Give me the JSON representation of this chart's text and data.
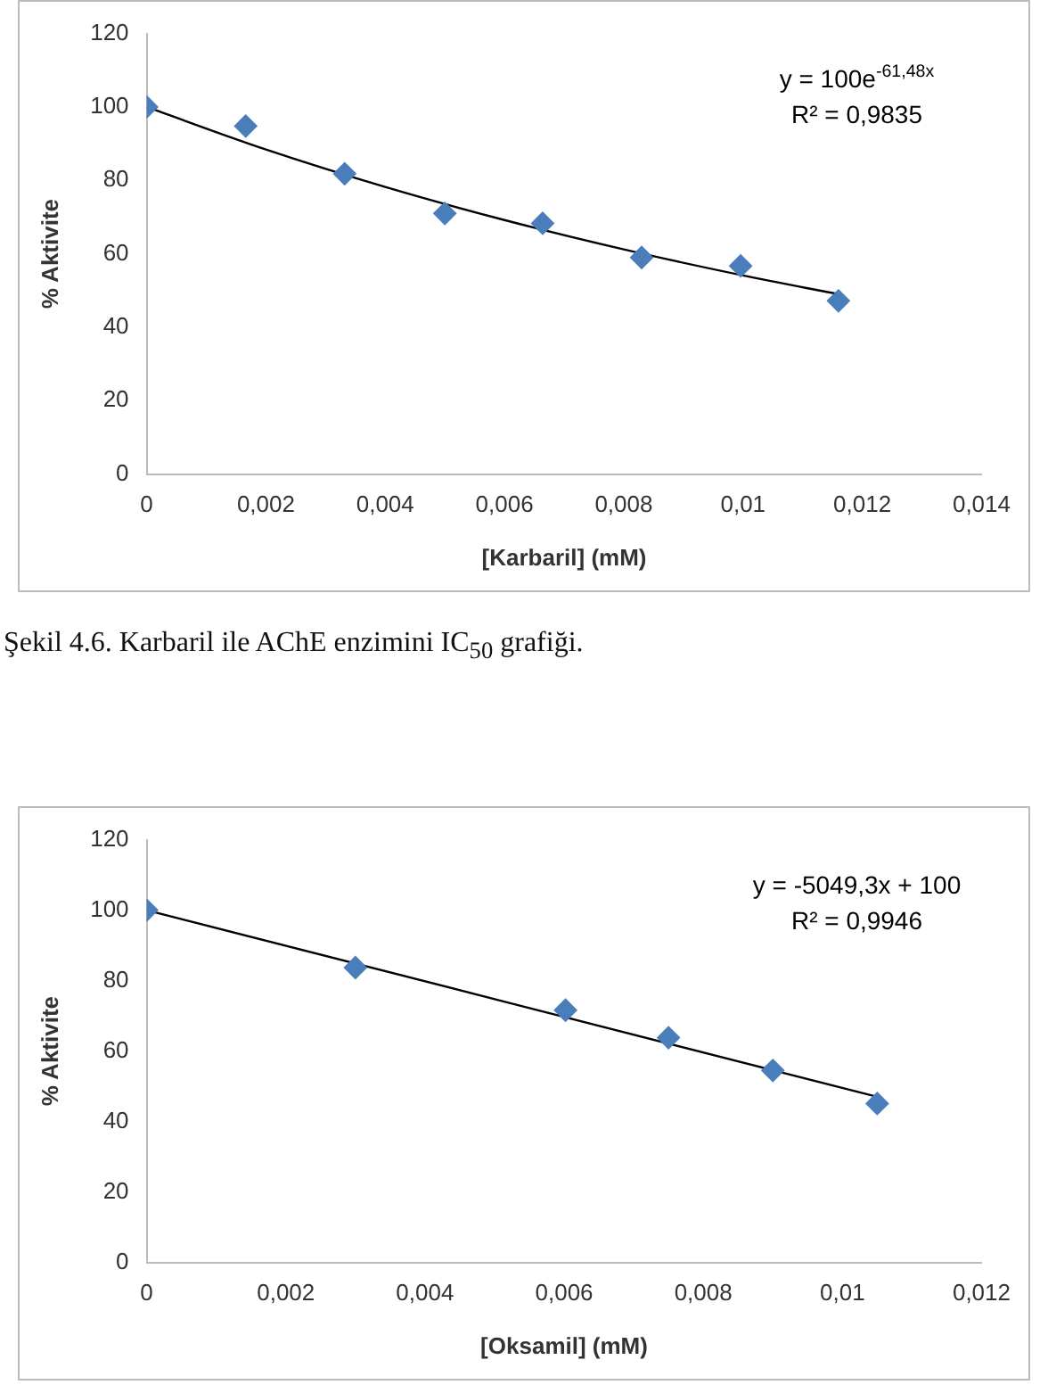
{
  "chart_data": [
    {
      "type": "scatter",
      "ylabel": "% Aktivite",
      "xlabel": "[Karbaril] (mM)",
      "marker": "diamond",
      "grid": false,
      "legend": false,
      "xlim": [
        0,
        0.014
      ],
      "xticks": [
        0,
        {
          "value": 0.002,
          "label": "0,002"
        },
        {
          "value": 0.004,
          "label": "0,004"
        },
        {
          "value": 0.006,
          "label": "0,006"
        },
        {
          "value": 0.008,
          "label": "0,008"
        },
        {
          "value": 0.01,
          "label": "0,01"
        },
        {
          "value": 0.012,
          "label": "0,012"
        },
        {
          "value": 0.014,
          "label": "0,014"
        }
      ],
      "ylim": [
        0,
        120
      ],
      "yticks": [
        0,
        20,
        40,
        60,
        80,
        100,
        120
      ],
      "series": [
        {
          "type": "scatter",
          "color": "#4a7ebb",
          "x": [
            0,
            0.00166,
            0.00332,
            0.005,
            0.00664,
            0.0083,
            0.00996,
            0.0116
          ],
          "values": [
            100,
            94.8,
            81.8,
            71,
            68.3,
            59,
            56.7,
            47.2
          ]
        },
        {
          "type": "line",
          "color": "#000000",
          "marker": "none",
          "x": [
            0,
            0.002,
            0.004,
            0.006,
            0.008,
            0.01,
            0.0116
          ],
          "values": [
            100,
            88.4,
            78.2,
            69.2,
            61.2,
            54.1,
            49
          ]
        }
      ],
      "annotations": [
        "y = 100e$^{-61,48x}$",
        "R² = 0,9835",
        "Şekil 4.6. Karbaril ile AChE enzimini IC$_{50}$ grafiği."
      ]
    },
    {
      "type": "scatter",
      "ylabel": "% Aktivite",
      "xlabel": "[Oksamil] (mM)",
      "marker": "diamond",
      "grid": false,
      "legend": false,
      "xlim": [
        0,
        0.012
      ],
      "xticks": [
        0,
        {
          "value": 0.002,
          "label": "0,002"
        },
        {
          "value": 0.004,
          "label": "0,004"
        },
        {
          "value": 0.006,
          "label": "0,006"
        },
        {
          "value": 0.008,
          "label": "0,008"
        },
        {
          "value": 0.01,
          "label": "0,01"
        },
        {
          "value": 0.012,
          "label": "0,012"
        }
      ],
      "ylim": [
        0,
        120
      ],
      "yticks": [
        0,
        20,
        40,
        60,
        80,
        100,
        120
      ],
      "series": [
        {
          "type": "scatter",
          "color": "#4a7ebb",
          "x": [
            0,
            0.003,
            0.00602,
            0.0075,
            0.009,
            0.0105
          ],
          "values": [
            100,
            83.7,
            71.6,
            63.8,
            54.5,
            45.1
          ]
        },
        {
          "type": "line",
          "color": "#000000",
          "marker": "none",
          "x": [
            0,
            0.0105
          ],
          "values": [
            100,
            47
          ]
        }
      ],
      "annotations": [
        "y = -5049,3x + 100",
        "R² = 0,9946"
      ]
    }
  ]
}
